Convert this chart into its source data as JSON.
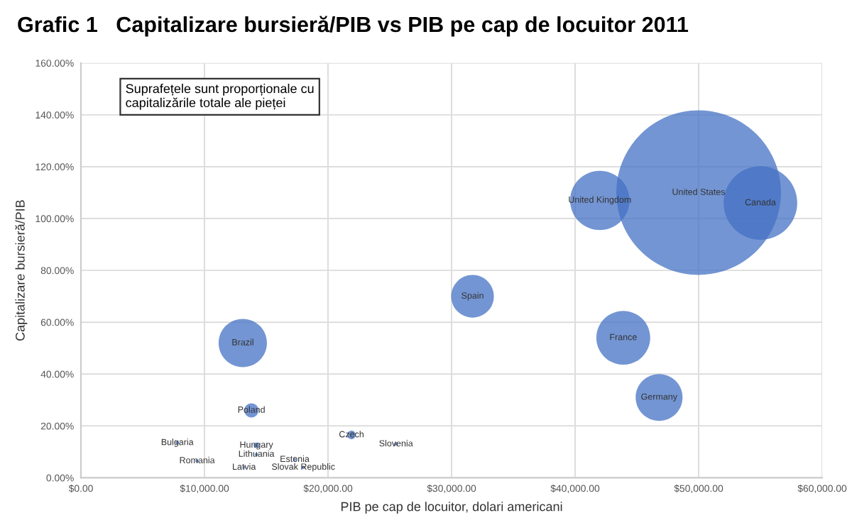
{
  "chart_data": {
    "type": "bubble",
    "title": "Grafic 1   Capitalizare bursieră/PIB vs PIB pe cap de locuitor 2011",
    "xlabel": "PIB pe cap de locuitor, dolari americani",
    "ylabel": "Capitalizare bursieră/PIB",
    "xlim": [
      0,
      60000
    ],
    "ylim": [
      0,
      160
    ],
    "xticks": [
      {
        "value": 0,
        "label": "$0.00"
      },
      {
        "value": 10000,
        "label": "$10,000.00"
      },
      {
        "value": 20000,
        "label": "$20,000.00"
      },
      {
        "value": 30000,
        "label": "$30,000.00"
      },
      {
        "value": 40000,
        "label": "$40,000.00"
      },
      {
        "value": 50000,
        "label": "$50,000.00"
      },
      {
        "value": 60000,
        "label": "$60,000.00"
      }
    ],
    "yticks": [
      {
        "value": 0,
        "label": "0.00%"
      },
      {
        "value": 20,
        "label": "20.00%"
      },
      {
        "value": 40,
        "label": "40.00%"
      },
      {
        "value": 60,
        "label": "60.00%"
      },
      {
        "value": 80,
        "label": "80.00%"
      },
      {
        "value": 100,
        "label": "100.00%"
      },
      {
        "value": 120,
        "label": "120.00%"
      },
      {
        "value": 140,
        "label": "140.00%"
      },
      {
        "value": 160,
        "label": "160.00%"
      }
    ],
    "grid": true,
    "series": [
      {
        "color": "#4472c4",
        "x": [
          50000,
          55000,
          42000,
          31700,
          43900,
          46800,
          13100,
          13800,
          21900,
          14200,
          7800,
          9400,
          14200,
          13200,
          17300,
          18000,
          25500
        ],
        "values": [
          110,
          106,
          107,
          70,
          54,
          31,
          52,
          26,
          16.5,
          12.5,
          13.5,
          6.5,
          9,
          4,
          7,
          4,
          13
        ],
        "sizes": [
          1,
          0.2,
          0.13,
          0.067,
          0.107,
          0.081,
          0.086,
          0.0074,
          0.0027,
          0.0012,
          0.0005,
          0.0004,
          0.0004,
          0.0003,
          0.0003,
          0.0004,
          0.0005
        ]
      }
    ],
    "annotations": [
      {
        "text": "United States",
        "x": 50000,
        "y": 110
      },
      {
        "text": "Canada",
        "x": 55000,
        "y": 106
      },
      {
        "text": "United Kingdom",
        "x": 42000,
        "y": 107
      },
      {
        "text": "Spain",
        "x": 31700,
        "y": 70
      },
      {
        "text": "France",
        "x": 43900,
        "y": 54
      },
      {
        "text": "Germany",
        "x": 46800,
        "y": 31
      },
      {
        "text": "Brazil",
        "x": 13100,
        "y": 52
      },
      {
        "text": "Poland",
        "x": 13800,
        "y": 26
      },
      {
        "text": "Czech",
        "x": 21900,
        "y": 16.5
      },
      {
        "text": "Hungary",
        "x": 14200,
        "y": 12.5
      },
      {
        "text": "Bulgaria",
        "x": 7800,
        "y": 13.5
      },
      {
        "text": "Romania",
        "x": 9400,
        "y": 6.5
      },
      {
        "text": "Lithuania",
        "x": 14200,
        "y": 9
      },
      {
        "text": "Latvia",
        "x": 13200,
        "y": 4
      },
      {
        "text": "Estonia",
        "x": 17300,
        "y": 7
      },
      {
        "text": "Slovak Republic",
        "x": 18000,
        "y": 4
      },
      {
        "text": "Slovenia",
        "x": 25500,
        "y": 13
      },
      "Suprafețele sunt proporționale cu\ncapitalizările totale ale pieței"
    ]
  }
}
